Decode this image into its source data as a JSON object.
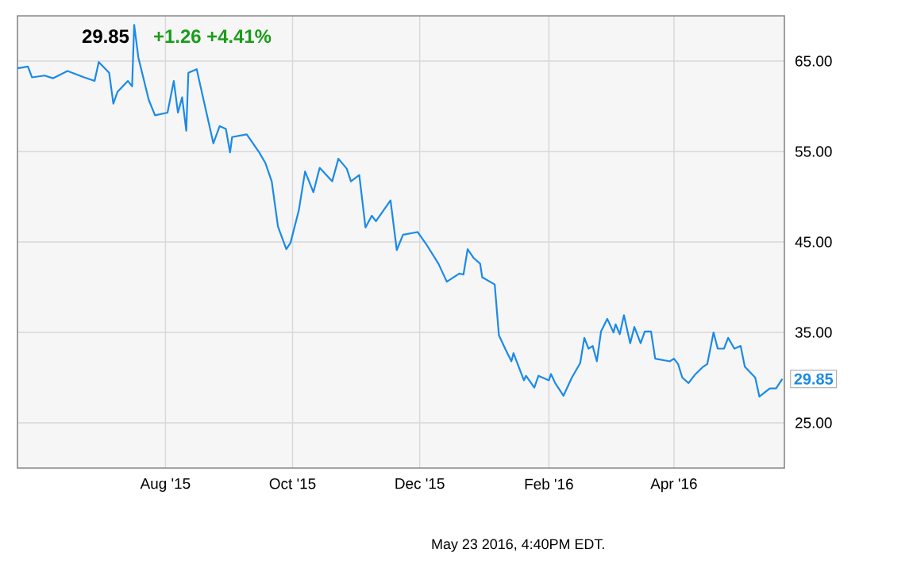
{
  "chart_data": {
    "type": "line",
    "title": "29.85",
    "subtitle": "+1.26  +4.41%",
    "annotations": [
      {
        "text": "29.85",
        "x": "2016-05-23",
        "y": 29.85
      },
      "May 23 2016, 4:40PM EDT."
    ],
    "xlim": [
      "2015-05-22",
      "2016-05-24"
    ],
    "ylim": [
      20,
      70
    ],
    "xticks": [
      {
        "value": "2015-08-01",
        "label": "Aug '15"
      },
      {
        "value": "2015-10-01",
        "label": "Oct '15"
      },
      {
        "value": "2015-12-01",
        "label": "Dec '15"
      },
      {
        "value": "2016-02-01",
        "label": "Feb '16"
      },
      {
        "value": "2016-04-01",
        "label": "Apr '16"
      }
    ],
    "yticks": [
      {
        "value": 25,
        "label": "25.00"
      },
      {
        "value": 35,
        "label": "35.00"
      },
      {
        "value": 45,
        "label": "45.00"
      },
      {
        "value": 55,
        "label": "55.00"
      },
      {
        "value": 65,
        "label": "65.00"
      }
    ],
    "grid": true,
    "marker": "none",
    "line_style": "solid",
    "x": [
      "2015-05-22",
      "2015-05-27",
      "2015-05-29",
      "2015-06-04",
      "2015-06-08",
      "2015-06-15",
      "2015-06-23",
      "2015-06-28",
      "2015-06-30",
      "2015-07-05",
      "2015-07-07",
      "2015-07-09",
      "2015-07-14",
      "2015-07-16",
      "2015-07-17",
      "2015-07-19",
      "2015-07-24",
      "2015-07-27",
      "2015-08-02",
      "2015-08-05",
      "2015-08-07",
      "2015-08-09",
      "2015-08-11",
      "2015-08-12",
      "2015-08-16",
      "2015-08-19",
      "2015-08-24",
      "2015-08-27",
      "2015-08-30",
      "2015-09-01",
      "2015-09-02",
      "2015-09-09",
      "2015-09-15",
      "2015-09-18",
      "2015-09-21",
      "2015-09-24",
      "2015-09-28",
      "2015-09-30",
      "2015-10-04",
      "2015-10-07",
      "2015-10-11",
      "2015-10-14",
      "2015-10-20",
      "2015-10-23",
      "2015-10-27",
      "2015-10-29",
      "2015-11-02",
      "2015-11-05",
      "2015-11-08",
      "2015-11-10",
      "2015-11-17",
      "2015-11-20",
      "2015-11-23",
      "2015-11-30",
      "2015-12-04",
      "2015-12-10",
      "2015-12-14",
      "2015-12-20",
      "2015-12-22",
      "2015-12-24",
      "2015-12-27",
      "2015-12-30",
      "2015-12-31",
      "2016-01-06",
      "2016-01-08",
      "2016-01-11",
      "2016-01-14",
      "2016-01-15",
      "2016-01-20",
      "2016-01-21",
      "2016-01-25",
      "2016-01-27",
      "2016-02-01",
      "2016-02-02",
      "2016-02-04",
      "2016-02-08",
      "2016-02-12",
      "2016-02-16",
      "2016-02-18",
      "2016-02-20",
      "2016-02-22",
      "2016-02-24",
      "2016-02-26",
      "2016-02-29",
      "2016-03-03",
      "2016-03-04",
      "2016-03-06",
      "2016-03-08",
      "2016-03-11",
      "2016-03-13",
      "2016-03-16",
      "2016-03-18",
      "2016-03-21",
      "2016-03-23",
      "2016-03-30",
      "2016-04-01",
      "2016-04-03",
      "2016-04-05",
      "2016-04-08",
      "2016-04-11",
      "2016-04-15",
      "2016-04-17",
      "2016-04-20",
      "2016-04-22",
      "2016-04-25",
      "2016-04-27",
      "2016-04-30",
      "2016-05-03",
      "2016-05-05",
      "2016-05-10",
      "2016-05-12",
      "2016-05-17",
      "2016-05-20",
      "2016-05-23"
    ],
    "series": [
      {
        "color": "#1a8ae8",
        "values": [
          64.2,
          64.4,
          63.2,
          63.4,
          63.1,
          63.9,
          63.2,
          62.8,
          64.9,
          63.7,
          60.3,
          61.6,
          62.8,
          62.2,
          69.0,
          65.4,
          60.7,
          59.0,
          59.3,
          62.8,
          59.3,
          61.0,
          57.3,
          63.7,
          64.1,
          61.0,
          55.9,
          57.8,
          57.5,
          54.9,
          56.6,
          56.9,
          54.9,
          53.7,
          51.7,
          46.7,
          44.2,
          44.9,
          48.5,
          52.8,
          50.5,
          53.2,
          51.7,
          54.2,
          53.1,
          51.7,
          52.4,
          46.6,
          47.9,
          47.3,
          49.6,
          44.1,
          45.8,
          46.1,
          44.8,
          42.6,
          40.6,
          41.5,
          41.4,
          44.2,
          43.2,
          42.6,
          41.1,
          40.3,
          34.7,
          33.2,
          31.8,
          32.7,
          29.7,
          30.2,
          28.9,
          30.2,
          29.7,
          30.4,
          29.4,
          28.0,
          30.0,
          31.6,
          34.4,
          33.2,
          33.5,
          31.8,
          35.1,
          36.5,
          35.0,
          35.9,
          34.8,
          36.9,
          33.8,
          35.6,
          33.8,
          35.1,
          35.1,
          32.1,
          31.8,
          32.1,
          31.5,
          30.0,
          29.4,
          30.3,
          31.2,
          31.5,
          35.0,
          33.2,
          33.2,
          34.4,
          33.2,
          33.5,
          31.2,
          30.0,
          27.9,
          28.8,
          28.8,
          29.85
        ]
      }
    ]
  }
}
